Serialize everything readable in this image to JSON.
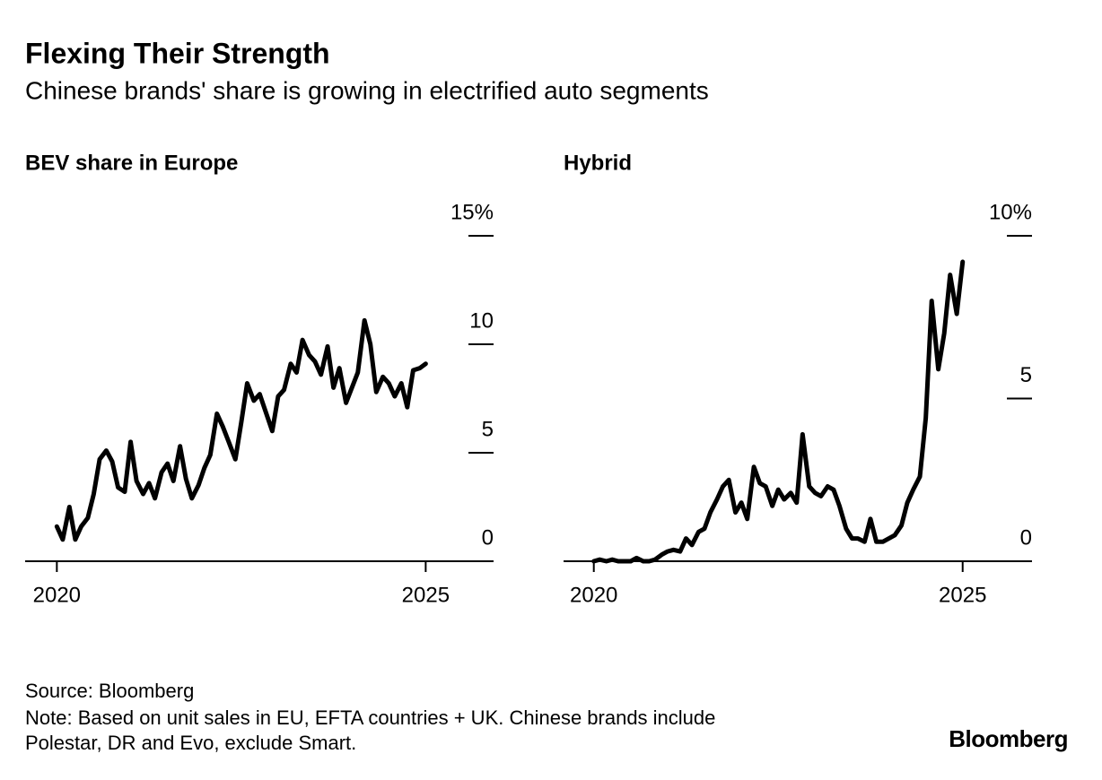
{
  "title": "Flexing Their Strength",
  "subtitle": "Chinese brands' share is growing in electrified auto segments",
  "source": "Source: Bloomberg",
  "note": [
    "Note: Based on unit sales in EU, EFTA countries + UK. Chinese brands include",
    "Polestar, DR and Evo, exclude Smart."
  ],
  "brand": "Bloomberg",
  "chart_data": [
    {
      "type": "line",
      "title": "BEV share in Europe",
      "color": "#000000",
      "x": [
        2020,
        2020.08,
        2020.17,
        2020.25,
        2020.33,
        2020.42,
        2020.5,
        2020.58,
        2020.67,
        2020.75,
        2020.83,
        2020.92,
        2021,
        2021.08,
        2021.17,
        2021.25,
        2021.33,
        2021.42,
        2021.5,
        2021.58,
        2021.67,
        2021.75,
        2021.83,
        2021.92,
        2022,
        2022.08,
        2022.17,
        2022.25,
        2022.33,
        2022.42,
        2022.5,
        2022.58,
        2022.67,
        2022.75,
        2022.83,
        2022.92,
        2023,
        2023.08,
        2023.17,
        2023.25,
        2023.33,
        2023.42,
        2023.5,
        2023.58,
        2023.67,
        2023.75,
        2023.83,
        2023.92,
        2024,
        2024.08,
        2024.17,
        2024.25,
        2024.33,
        2024.42,
        2024.5,
        2024.58,
        2024.67,
        2024.75,
        2024.83,
        2024.92,
        2025
      ],
      "values": [
        1.6,
        1.0,
        2.5,
        1.0,
        1.6,
        2.0,
        3.1,
        4.7,
        5.1,
        4.6,
        3.4,
        3.2,
        5.5,
        3.7,
        3.1,
        3.6,
        2.9,
        4.1,
        4.5,
        3.7,
        5.3,
        3.8,
        2.9,
        3.5,
        4.3,
        4.9,
        6.8,
        6.2,
        5.5,
        4.7,
        6.4,
        8.2,
        7.4,
        7.7,
        6.9,
        6.0,
        7.6,
        7.9,
        9.1,
        8.7,
        10.2,
        9.5,
        9.2,
        8.6,
        9.9,
        8.0,
        8.9,
        7.3,
        8.0,
        8.7,
        11.1,
        10.0,
        7.8,
        8.5,
        8.2,
        7.6,
        8.2,
        7.1,
        8.8,
        8.9,
        9.1
      ],
      "xlim": [
        2019.57,
        2025.92
      ],
      "xticks": [
        2020,
        2025
      ],
      "ylim": [
        0,
        15
      ],
      "yticks": [
        0,
        5,
        10,
        {
          "value": 15,
          "label": "15%"
        }
      ]
    },
    {
      "type": "line",
      "title": "Hybrid",
      "color": "#000000",
      "x": [
        2020,
        2020.08,
        2020.17,
        2020.25,
        2020.33,
        2020.42,
        2020.5,
        2020.58,
        2020.67,
        2020.75,
        2020.83,
        2020.92,
        2021,
        2021.08,
        2021.17,
        2021.25,
        2021.33,
        2021.42,
        2021.5,
        2021.58,
        2021.67,
        2021.75,
        2021.83,
        2021.92,
        2022,
        2022.08,
        2022.17,
        2022.25,
        2022.33,
        2022.42,
        2022.5,
        2022.58,
        2022.67,
        2022.75,
        2022.83,
        2022.92,
        2023,
        2023.08,
        2023.17,
        2023.25,
        2023.33,
        2023.42,
        2023.5,
        2023.58,
        2023.67,
        2023.75,
        2023.83,
        2023.92,
        2024,
        2024.08,
        2024.17,
        2024.25,
        2024.33,
        2024.42,
        2024.5,
        2024.58,
        2024.67,
        2024.75,
        2024.83,
        2024.92,
        2025
      ],
      "values": [
        0,
        0.05,
        0,
        0.05,
        0,
        0,
        0,
        0.1,
        0,
        0,
        0.05,
        0.2,
        0.3,
        0.35,
        0.3,
        0.7,
        0.5,
        0.9,
        1.0,
        1.5,
        1.9,
        2.3,
        2.5,
        1.5,
        1.8,
        1.3,
        2.9,
        2.4,
        2.3,
        1.7,
        2.2,
        1.9,
        2.1,
        1.8,
        3.9,
        2.3,
        2.1,
        2.0,
        2.3,
        2.2,
        1.7,
        1.0,
        0.7,
        0.7,
        0.6,
        1.3,
        0.6,
        0.6,
        0.7,
        0.8,
        1.1,
        1.8,
        2.2,
        2.6,
        4.4,
        8.0,
        5.9,
        7.0,
        8.8,
        7.6,
        9.2
      ],
      "xlim": [
        2019.59,
        2025.94
      ],
      "xticks": [
        2020,
        2025
      ],
      "ylim": [
        0,
        10
      ],
      "yticks": [
        0,
        5,
        {
          "value": 10,
          "label": "10%"
        }
      ]
    }
  ]
}
